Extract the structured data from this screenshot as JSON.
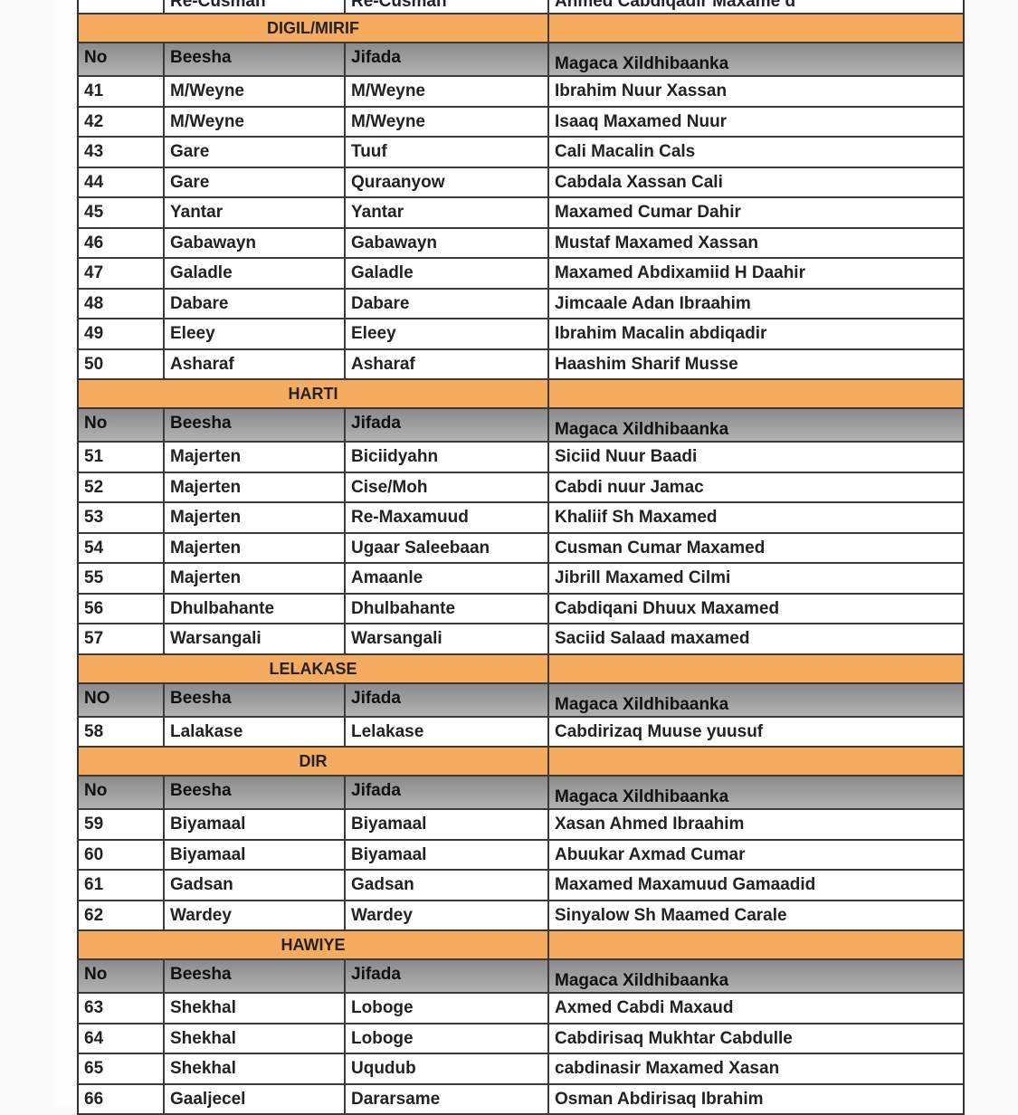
{
  "columns": {
    "no": "No",
    "beesha": "Beesha",
    "jifada": "Jifada",
    "name": "Magaca Xildhibaanka"
  },
  "top_partial_row": {
    "beesha": "Re-Cusman",
    "jifada": "Re-Cusman",
    "name": "Ahmed Cabdiqadir Maxame d"
  },
  "colors": {
    "section": "#f6ac5e",
    "header": "#9e9e9e"
  },
  "sections": [
    {
      "title": "DIGIL/MIRIF",
      "no_label": "No",
      "rows": [
        [
          "41",
          "M/Weyne",
          "M/Weyne",
          "Ibrahim Nuur Xassan"
        ],
        [
          "42",
          "M/Weyne",
          "M/Weyne",
          "Isaaq Maxamed Nuur"
        ],
        [
          "43",
          "Gare",
          "Tuuf",
          "Cali Macalin Cals"
        ],
        [
          "44",
          "Gare",
          "Quraanyow",
          "Cabdala Xassan Cali"
        ],
        [
          "45",
          "Yantar",
          "Yantar",
          "Maxamed Cumar Dahir"
        ],
        [
          "46",
          "Gabawayn",
          "Gabawayn",
          "Mustaf Maxamed Xassan"
        ],
        [
          "47",
          "Galadle",
          "Galadle",
          "Maxamed Abdixamiid H Daahir"
        ],
        [
          "48",
          "Dabare",
          "Dabare",
          "Jimcaale Adan Ibraahim"
        ],
        [
          "49",
          "Eleey",
          "Eleey",
          "Ibrahim Macalin abdiqadir"
        ],
        [
          "50",
          "Asharaf",
          "Asharaf",
          "Haashim Sharif Musse"
        ]
      ]
    },
    {
      "title": "HARTI",
      "no_label": "No",
      "rows": [
        [
          "51",
          "Majerten",
          "Biciidyahn",
          "Siciid Nuur Baadi"
        ],
        [
          "52",
          "Majerten",
          "Cise/Moh",
          "Cabdi nuur Jamac"
        ],
        [
          "53",
          "Majerten",
          "Re-Maxamuud",
          "Khaliif Sh Maxamed"
        ],
        [
          "54",
          "Majerten",
          "Ugaar Saleebaan",
          "Cusman Cumar Maxamed"
        ],
        [
          "55",
          "Majerten",
          "Amaanle",
          "Jibrill Maxamed Cilmi"
        ],
        [
          "56",
          "Dhulbahante",
          "Dhulbahante",
          "Cabdiqani Dhuux Maxamed"
        ],
        [
          "57",
          "Warsangali",
          "Warsangali",
          "Saciid Salaad maxamed"
        ]
      ]
    },
    {
      "title": "LELAKASE",
      "no_label": "NO",
      "rows": [
        [
          "58",
          "Lalakase",
          "Lelakase",
          "Cabdirizaq Muuse yuusuf"
        ]
      ]
    },
    {
      "title": "DIR",
      "no_label": "No",
      "rows": [
        [
          "59",
          "Biyamaal",
          "Biyamaal",
          "Xasan Ahmed Ibraahim"
        ],
        [
          "60",
          "Biyamaal",
          "Biyamaal",
          "Abuukar Axmad Cumar"
        ],
        [
          "61",
          "Gadsan",
          "Gadsan",
          "Maxamed Maxamuud Gamaadid"
        ],
        [
          "62",
          "Wardey",
          "Wardey",
          "Sinyalow Sh Maamed Carale"
        ]
      ]
    },
    {
      "title": "HAWIYE",
      "no_label": "No",
      "rows": [
        [
          "63",
          "Shekhal",
          "Loboge",
          "Axmed Cabdi Maxaud"
        ],
        [
          "64",
          "Shekhal",
          "Loboge",
          "Cabdirisaq Mukhtar Cabdulle"
        ],
        [
          "65",
          "Shekhal",
          "Uqudub",
          "cabdinasir Maxamed Xasan"
        ],
        [
          "66",
          "Gaaljecel",
          "Dararsame",
          "Osman Abdirisaq Ibrahim"
        ]
      ]
    }
  ]
}
